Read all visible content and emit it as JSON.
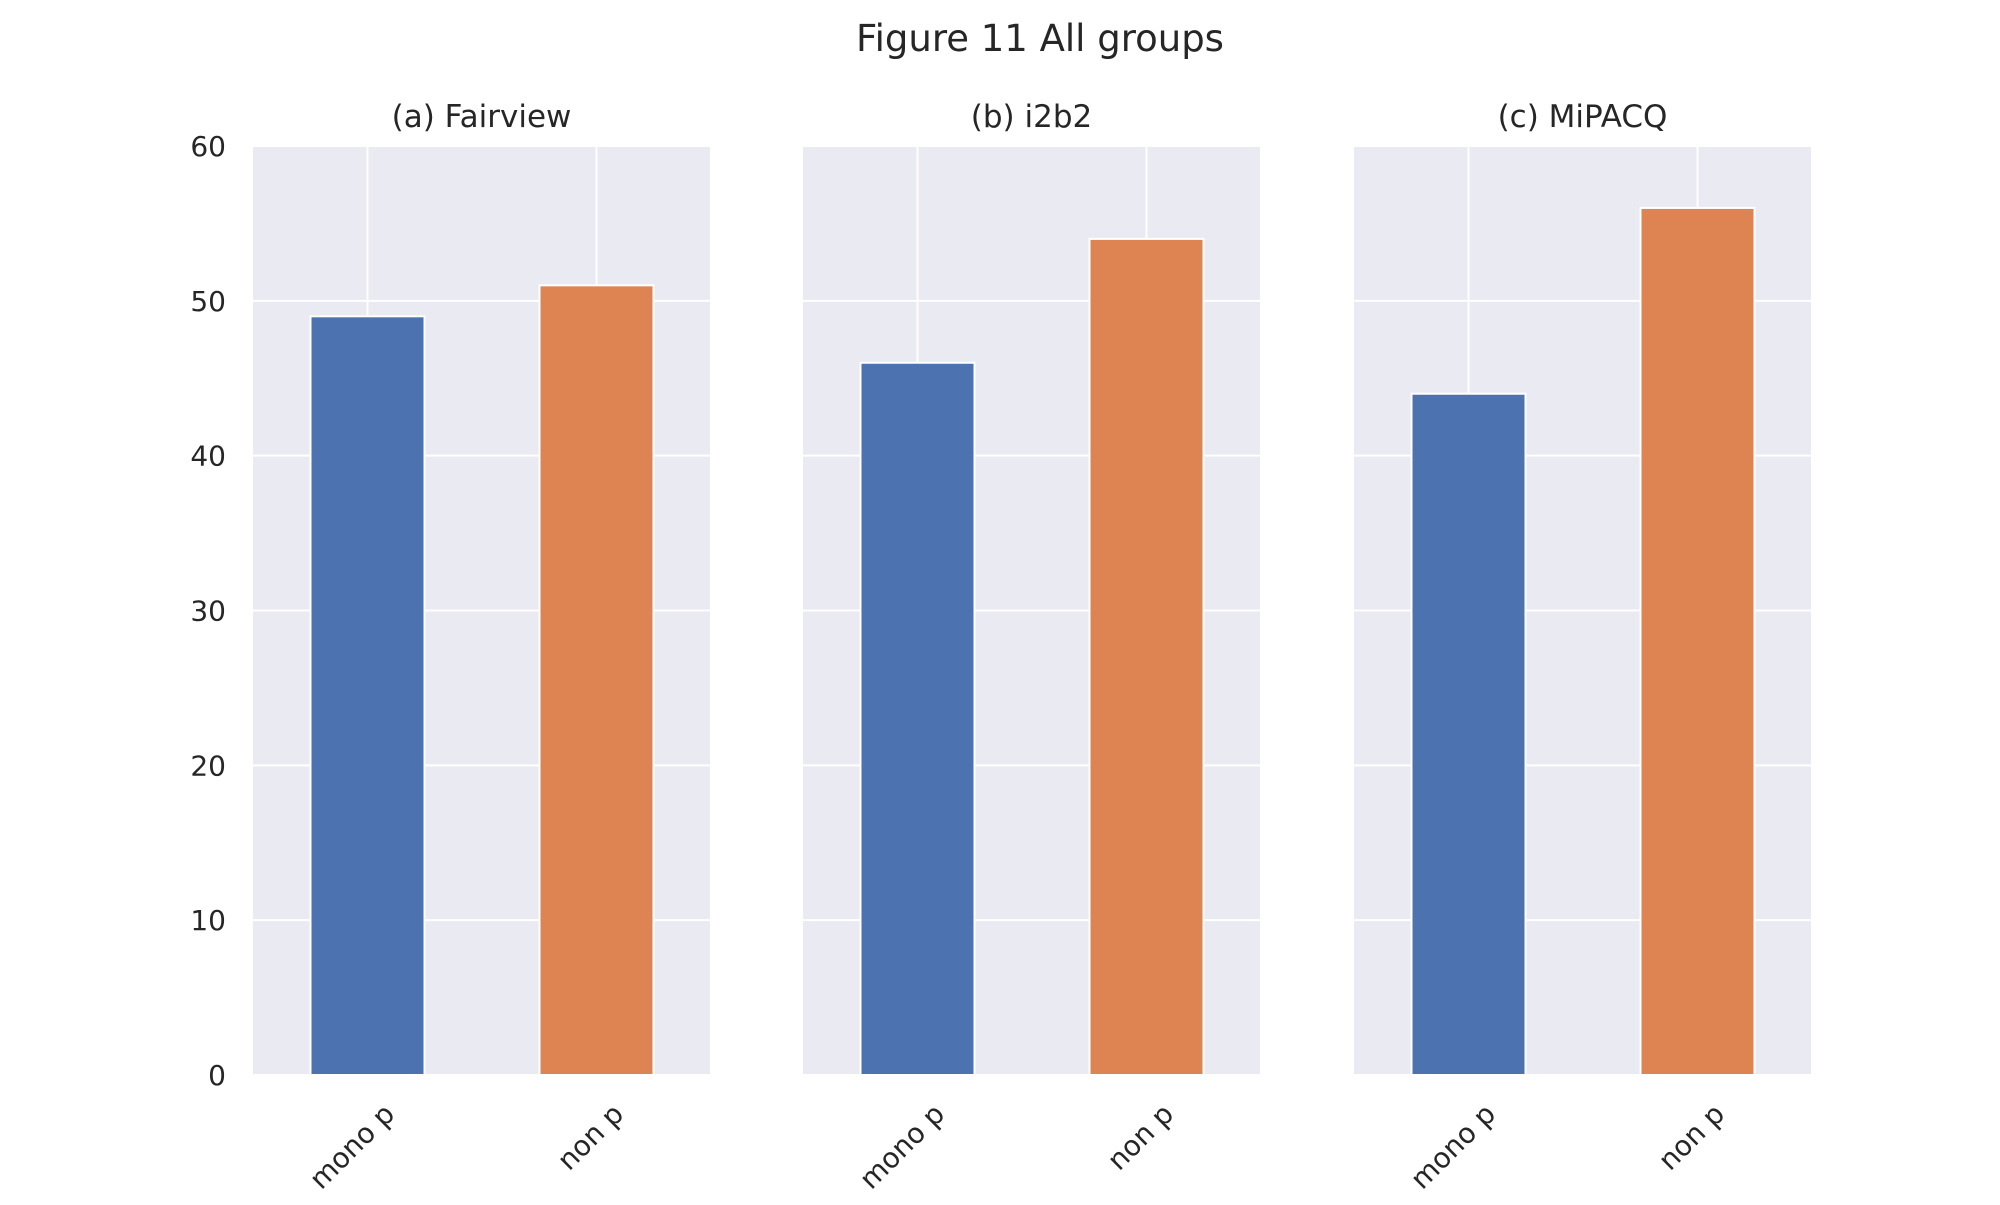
{
  "figure": {
    "title": "Figure 11 All groups"
  },
  "colors": {
    "panel_background": "#eaeaf2",
    "grid": "#ffffff",
    "bar_outline": "#ffffff",
    "category_colors": [
      "#4c72b0",
      "#dd8452"
    ]
  },
  "chart_data": [
    {
      "type": "bar",
      "title": "(a) Fairview",
      "categories": [
        "mono p",
        "non p"
      ],
      "values": [
        49,
        51
      ],
      "xlabel": "",
      "ylabel": "",
      "ylim": [
        0,
        60
      ],
      "yticks": [
        "0",
        "10",
        "20",
        "30",
        "40",
        "50",
        "60"
      ],
      "grid": true,
      "legend": "none"
    },
    {
      "type": "bar",
      "title": "(b) i2b2",
      "categories": [
        "mono p",
        "non p"
      ],
      "values": [
        46,
        54
      ],
      "xlabel": "",
      "ylabel": "",
      "ylim": [
        0,
        60
      ],
      "grid": true,
      "legend": "none"
    },
    {
      "type": "bar",
      "title": "(c) MiPACQ",
      "categories": [
        "mono p",
        "non p"
      ],
      "values": [
        44,
        56
      ],
      "xlabel": "",
      "ylabel": "",
      "ylim": [
        0,
        60
      ],
      "grid": true,
      "legend": "none"
    }
  ]
}
